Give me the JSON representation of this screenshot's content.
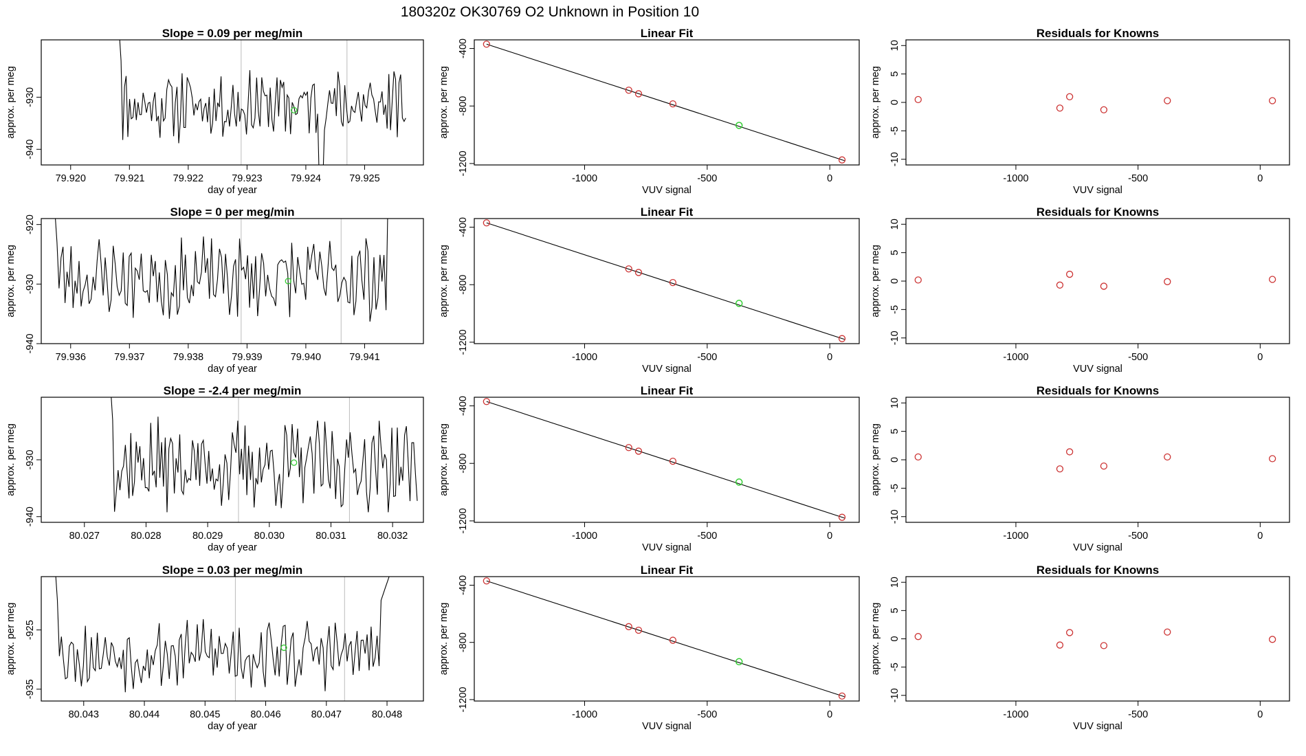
{
  "page_title": "180320z      OK30769    O2 Unknown in Position  10",
  "colors": {
    "line": "#000000",
    "known": "#cc3333",
    "unknown": "#33cc33",
    "vline": "#bbbbbb"
  },
  "chart_data": [
    {
      "type": "line",
      "title": "Slope =  0.09  per meg/min",
      "xlabel": "day of year",
      "ylabel": "approx. per meg",
      "xlim": [
        79.9195,
        79.926
      ],
      "ylim": [
        -943,
        -919
      ],
      "xticks": [
        "79.920",
        "79.921",
        "79.922",
        "79.923",
        "79.924",
        "79.925"
      ],
      "yticks": [
        "-930",
        "-940"
      ],
      "vlines": [
        79.9229,
        79.9247
      ],
      "highlight": [
        79.9238,
        -932.5
      ],
      "seed": 11,
      "series": {
        "x_start": 79.9208,
        "x_end": 79.9257,
        "level": -931.5,
        "amp": 3.5
      }
    },
    {
      "type": "line",
      "title": "Slope =  0  per meg/min",
      "xlabel": "day of year",
      "ylabel": "approx. per meg",
      "xlim": [
        79.9355,
        79.942
      ],
      "ylim": [
        -940,
        -919
      ],
      "xticks": [
        "79.936",
        "79.937",
        "79.938",
        "79.939",
        "79.940",
        "79.941"
      ],
      "yticks": [
        "-920",
        "-930",
        "-940"
      ],
      "vlines": [
        79.9389,
        79.9406
      ],
      "highlight": [
        79.9397,
        -929.5
      ],
      "seed": 23,
      "series": {
        "x_start": 79.9357,
        "x_end": 79.9415,
        "level": -929,
        "amp": 3.5
      }
    },
    {
      "type": "line",
      "title": "Slope =  -2.4  per meg/min",
      "xlabel": "day of year",
      "ylabel": "approx. per meg",
      "xlim": [
        80.0263,
        80.0325
      ],
      "ylim": [
        -941,
        -919
      ],
      "xticks": [
        "80.027",
        "80.028",
        "80.029",
        "80.030",
        "80.031",
        "80.032"
      ],
      "yticks": [
        "-930",
        "-940"
      ],
      "vlines": [
        80.0295,
        80.0313
      ],
      "highlight": [
        80.0304,
        -930.5
      ],
      "seed": 37,
      "series": {
        "x_start": 80.0274,
        "x_end": 80.0324,
        "level": -931,
        "amp": 4
      }
    },
    {
      "type": "line",
      "title": "Slope =  0.03  per meg/min",
      "xlabel": "day of year",
      "ylabel": "approx. per meg",
      "xlim": [
        80.0423,
        80.0486
      ],
      "ylim": [
        -937,
        -916
      ],
      "xticks": [
        "80.043",
        "80.044",
        "80.045",
        "80.046",
        "80.047",
        "80.048"
      ],
      "yticks": [
        "-925",
        "-935"
      ],
      "vlines": [
        80.0455,
        80.0473
      ],
      "highlight": [
        80.0463,
        -928
      ],
      "seed": 53,
      "series": {
        "x_start": 80.0425,
        "x_end": 80.0481,
        "level": -929,
        "amp": 3
      }
    },
    {
      "type": "scatter",
      "title": "Linear Fit",
      "xlabel": "VUV signal",
      "ylabel": "approx. per meg",
      "xlim": [
        -1450,
        120
      ],
      "ylim": [
        -1210,
        -340
      ],
      "xticks": [
        "-1000",
        "-500",
        "0"
      ],
      "yticks": [
        "-400",
        "-800",
        "-1200"
      ],
      "fit_line": [
        [
          -1400,
          -370
        ],
        [
          60,
          -1180
        ]
      ],
      "known": [
        [
          -1400,
          -370
        ],
        [
          -820,
          -690
        ],
        [
          -780,
          -715
        ],
        [
          -640,
          -785
        ],
        [
          50,
          -1175
        ]
      ],
      "unknown": [
        [
          -370,
          -935
        ]
      ]
    },
    {
      "type": "scatter",
      "title": "Linear Fit",
      "xlabel": "VUV signal",
      "ylabel": "approx. per meg",
      "xlim": [
        -1450,
        120
      ],
      "ylim": [
        -1210,
        -340
      ],
      "xticks": [
        "-1000",
        "-500",
        "0"
      ],
      "yticks": [
        "-400",
        "-800",
        "-1200"
      ],
      "fit_line": [
        [
          -1400,
          -370
        ],
        [
          60,
          -1180
        ]
      ],
      "known": [
        [
          -1400,
          -370
        ],
        [
          -820,
          -690
        ],
        [
          -780,
          -715
        ],
        [
          -640,
          -785
        ],
        [
          50,
          -1175
        ]
      ],
      "unknown": [
        [
          -370,
          -930
        ]
      ]
    },
    {
      "type": "scatter",
      "title": "Linear Fit",
      "xlabel": "VUV signal",
      "ylabel": "approx. per meg",
      "xlim": [
        -1450,
        120
      ],
      "ylim": [
        -1210,
        -340
      ],
      "xticks": [
        "-1000",
        "-500",
        "0"
      ],
      "yticks": [
        "-400",
        "-800",
        "-1200"
      ],
      "fit_line": [
        [
          -1400,
          -370
        ],
        [
          60,
          -1180
        ]
      ],
      "known": [
        [
          -1400,
          -370
        ],
        [
          -820,
          -690
        ],
        [
          -780,
          -715
        ],
        [
          -640,
          -785
        ],
        [
          50,
          -1175
        ]
      ],
      "unknown": [
        [
          -370,
          -930
        ]
      ]
    },
    {
      "type": "scatter",
      "title": "Linear Fit",
      "xlabel": "VUV signal",
      "ylabel": "approx. per meg",
      "xlim": [
        -1450,
        120
      ],
      "ylim": [
        -1210,
        -340
      ],
      "xticks": [
        "-1000",
        "-500",
        "0"
      ],
      "yticks": [
        "-400",
        "-800",
        "-1200"
      ],
      "fit_line": [
        [
          -1400,
          -370
        ],
        [
          60,
          -1180
        ]
      ],
      "known": [
        [
          -1400,
          -370
        ],
        [
          -820,
          -690
        ],
        [
          -780,
          -715
        ],
        [
          -640,
          -785
        ],
        [
          50,
          -1175
        ]
      ],
      "unknown": [
        [
          -370,
          -935
        ]
      ]
    },
    {
      "type": "scatter",
      "title": "Residuals for Knowns",
      "xlabel": "VUV signal",
      "ylabel": "approx. per meg",
      "xlim": [
        -1450,
        120
      ],
      "ylim": [
        -11,
        11
      ],
      "xticks": [
        "-1000",
        "-500",
        "0"
      ],
      "yticks": [
        "10",
        "5",
        "0",
        "-5",
        "-10"
      ],
      "known": [
        [
          -1400,
          0.5
        ],
        [
          -820,
          -1.0
        ],
        [
          -780,
          1.0
        ],
        [
          -640,
          -1.3
        ],
        [
          -380,
          0.3
        ],
        [
          50,
          0.3
        ]
      ]
    },
    {
      "type": "scatter",
      "title": "Residuals for Knowns",
      "xlabel": "VUV signal",
      "ylabel": "approx. per meg",
      "xlim": [
        -1450,
        120
      ],
      "ylim": [
        -11,
        11
      ],
      "xticks": [
        "-1000",
        "-500",
        "0"
      ],
      "yticks": [
        "10",
        "5",
        "0",
        "-5",
        "-10"
      ],
      "known": [
        [
          -1400,
          0.2
        ],
        [
          -820,
          -0.7
        ],
        [
          -780,
          1.2
        ],
        [
          -640,
          -0.9
        ],
        [
          -380,
          -0.1
        ],
        [
          50,
          0.3
        ]
      ]
    },
    {
      "type": "scatter",
      "title": "Residuals for Knowns",
      "xlabel": "VUV signal",
      "ylabel": "approx. per meg",
      "xlim": [
        -1450,
        120
      ],
      "ylim": [
        -11,
        11
      ],
      "xticks": [
        "-1000",
        "-500",
        "0"
      ],
      "yticks": [
        "10",
        "5",
        "0",
        "-5",
        "-10"
      ],
      "known": [
        [
          -1400,
          0.5
        ],
        [
          -820,
          -1.6
        ],
        [
          -780,
          1.4
        ],
        [
          -640,
          -1.1
        ],
        [
          -380,
          0.5
        ],
        [
          50,
          0.2
        ]
      ]
    },
    {
      "type": "scatter",
      "title": "Residuals for Knowns",
      "xlabel": "VUV signal",
      "ylabel": "approx. per meg",
      "xlim": [
        -1450,
        120
      ],
      "ylim": [
        -11,
        11
      ],
      "xticks": [
        "-1000",
        "-500",
        "0"
      ],
      "yticks": [
        "10",
        "5",
        "0",
        "-5",
        "-10"
      ],
      "known": [
        [
          -1400,
          0.4
        ],
        [
          -820,
          -1.1
        ],
        [
          -780,
          1.1
        ],
        [
          -640,
          -1.2
        ],
        [
          -380,
          1.2
        ],
        [
          50,
          -0.1
        ]
      ]
    }
  ]
}
